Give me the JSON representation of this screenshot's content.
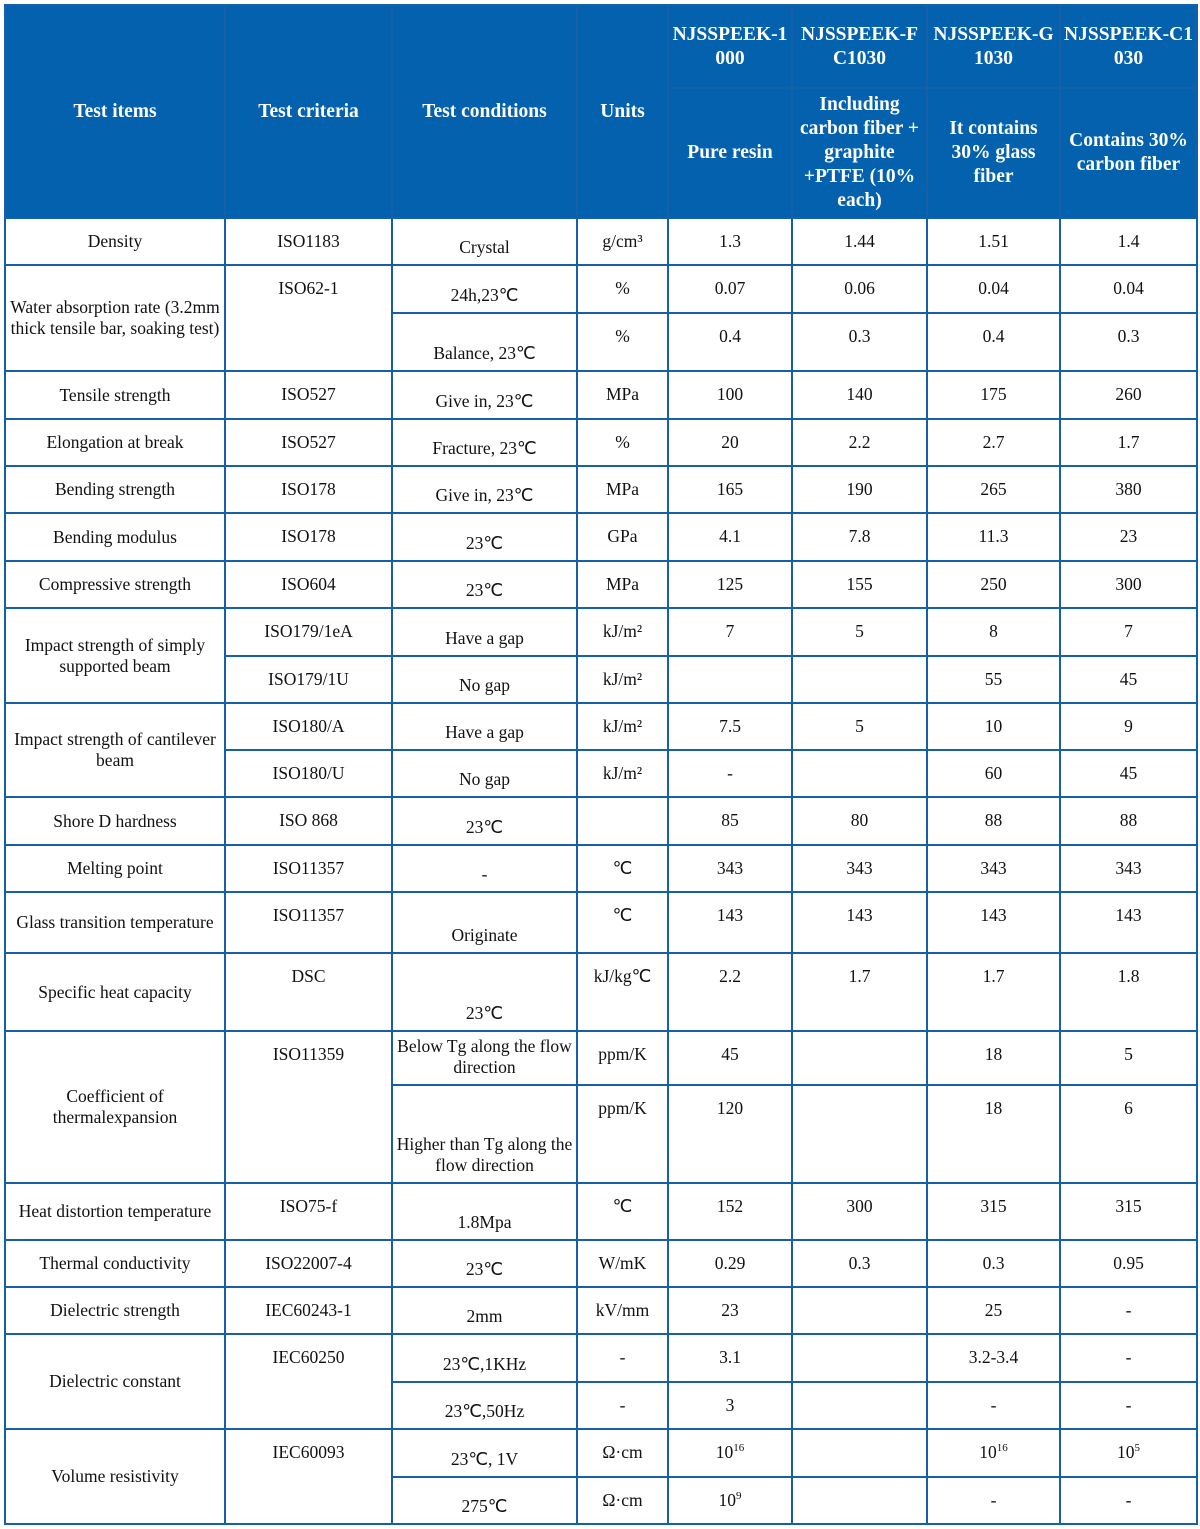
{
  "header": {
    "test_items": "Test items",
    "test_criteria": "Test criteria",
    "test_conditions": "Test conditions",
    "units": "Units",
    "grades": [
      {
        "name": "NJSSPEEK-1000",
        "desc": "Pure resin"
      },
      {
        "name": "NJSSPEEK-FC1030",
        "desc": "Including carbon fiber + graphite +PTFE (10% each)"
      },
      {
        "name": "NJSSPEEK-G1030",
        "desc": "It contains 30% glass fiber"
      },
      {
        "name": "NJSSPEEK-C1030",
        "desc": "Contains 30% carbon fiber"
      }
    ]
  },
  "rows": [
    {
      "h": 47,
      "item": {
        "t": "Density"
      },
      "crit": {
        "t": "ISO1183"
      },
      "cond": "Crystal",
      "unit": "g/cm³",
      "v": [
        "1.3",
        "1.44",
        "1.51",
        "1.4"
      ]
    },
    {
      "h": 48,
      "item": {
        "t": "Water absorption rate (3.2mm thick tensile bar, soaking test)",
        "rs": 2
      },
      "crit": {
        "t": "ISO62-1",
        "rs": 2
      },
      "cond": "24h,23℃",
      "unit": "%",
      "v": [
        "0.07",
        "0.06",
        "0.04",
        "0.04"
      ]
    },
    {
      "h": 58,
      "cond": "Balance, 23℃",
      "unit": "%",
      "v": [
        "0.4",
        "0.3",
        "0.4",
        "0.3"
      ]
    },
    {
      "h": 48,
      "item": {
        "t": "Tensile strength"
      },
      "crit": {
        "t": "ISO527"
      },
      "cond": "Give in, 23℃",
      "unit": "MPa",
      "v": [
        "100",
        "140",
        "175",
        "260"
      ]
    },
    {
      "h": 47,
      "item": {
        "t": "Elongation at break"
      },
      "crit": {
        "t": "ISO527"
      },
      "cond": "Fracture, 23℃",
      "unit": "%",
      "v": [
        "20",
        "2.2",
        "2.7",
        "1.7"
      ]
    },
    {
      "h": 47,
      "item": {
        "t": "Bending strength"
      },
      "crit": {
        "t": "ISO178"
      },
      "cond": "Give in, 23℃",
      "unit": "MPa",
      "v": [
        "165",
        "190",
        "265",
        "380"
      ]
    },
    {
      "h": 48,
      "item": {
        "t": "Bending modulus"
      },
      "crit": {
        "t": "ISO178"
      },
      "cond": "23℃",
      "unit": "GPa",
      "v": [
        "4.1",
        "7.8",
        "11.3",
        "23"
      ]
    },
    {
      "h": 47,
      "item": {
        "t": "Compressive strength"
      },
      "crit": {
        "t": "ISO604"
      },
      "cond": "23℃",
      "unit": "MPa",
      "v": [
        "125",
        "155",
        "250",
        "300"
      ]
    },
    {
      "h": 48,
      "item": {
        "t": "Impact strength of simply supported beam",
        "rs": 2
      },
      "crit": {
        "t": "ISO179/1eA"
      },
      "cond": "Have a gap",
      "unit": "kJ/m²",
      "v": [
        "7",
        "5",
        "8",
        "7"
      ]
    },
    {
      "h": 47,
      "crit": {
        "t": "ISO179/1U"
      },
      "cond": "No gap",
      "unit": "kJ/m²",
      "v": [
        "",
        "",
        "55",
        "45"
      ]
    },
    {
      "h": 47,
      "item": {
        "t": "Impact strength of cantilever beam",
        "rs": 2
      },
      "crit": {
        "t": "ISO180/A"
      },
      "cond": "Have a gap",
      "unit": "kJ/m²",
      "v": [
        "7.5",
        "5",
        "10",
        "9"
      ]
    },
    {
      "h": 47,
      "crit": {
        "t": "ISO180/U"
      },
      "cond": "No gap",
      "unit": "kJ/m²",
      "v": [
        "-",
        "",
        "60",
        "45"
      ]
    },
    {
      "h": 48,
      "item": {
        "t": "Shore D hardness"
      },
      "crit": {
        "t": "ISO 868"
      },
      "cond": "23℃",
      "unit": "",
      "v": [
        "85",
        "80",
        "88",
        "88"
      ]
    },
    {
      "h": 47,
      "item": {
        "t": "Melting point"
      },
      "crit": {
        "t": "ISO11357"
      },
      "cond": "-",
      "unit": "℃",
      "v": [
        "343",
        "343",
        "343",
        "343"
      ]
    },
    {
      "h": 61,
      "item": {
        "t": "Glass transition temperature"
      },
      "crit": {
        "t": "ISO11357"
      },
      "cond": "Originate",
      "unit": "℃",
      "v": [
        "143",
        "143",
        "143",
        "143"
      ]
    },
    {
      "h": 78,
      "item": {
        "t": "Specific heat capacity"
      },
      "crit": {
        "t": "DSC"
      },
      "cond": "23℃",
      "unit": "kJ/kg℃",
      "v": [
        "2.2",
        "1.7",
        "1.7",
        "1.8"
      ]
    },
    {
      "h": 54,
      "item": {
        "t": "Coefficient of thermalexpansion",
        "rs": 2
      },
      "crit": {
        "t": "ISO11359",
        "rs": 2
      },
      "cond": "Below Tg along the flow direction",
      "unit": "ppm/K",
      "v": [
        "45",
        "",
        "18",
        "5"
      ]
    },
    {
      "h": 98,
      "cond": "Higher than Tg along the flow direction",
      "unit": "ppm/K",
      "v": [
        "120",
        "",
        "18",
        "6"
      ]
    },
    {
      "h": 57,
      "item": {
        "t": "Heat distortion temperature"
      },
      "crit": {
        "t": "ISO75-f"
      },
      "cond": "1.8Mpa",
      "unit": "℃",
      "v": [
        "152",
        "300",
        "315",
        "315"
      ]
    },
    {
      "h": 47,
      "item": {
        "t": "Thermal conductivity"
      },
      "crit": {
        "t": "ISO22007-4"
      },
      "cond": "23℃",
      "unit": "W/mK",
      "v": [
        "0.29",
        "0.3",
        "0.3",
        "0.95"
      ]
    },
    {
      "h": 47,
      "item": {
        "t": "Dielectric strength"
      },
      "crit": {
        "t": "IEC60243-1"
      },
      "cond": "2mm",
      "unit": "kV/mm",
      "v": [
        "23",
        "",
        "25",
        "-"
      ]
    },
    {
      "h": 48,
      "item": {
        "t": "Dielectric constant",
        "rs": 2
      },
      "crit": {
        "t": "IEC60250",
        "rs": 2
      },
      "cond": "23℃,1KHz",
      "unit": "-",
      "v": [
        "3.1",
        "",
        "3.2-3.4",
        "-"
      ]
    },
    {
      "h": 47,
      "cond": "23℃,50Hz",
      "unit": "-",
      "v": [
        "3",
        "",
        "-",
        "-"
      ]
    },
    {
      "h": 48,
      "item": {
        "t": "Volume resistivity",
        "rs": 2
      },
      "crit": {
        "t": "IEC60093",
        "rs": 2
      },
      "cond": "23℃, 1V",
      "unit": "Ω·cm",
      "v": [
        {
          "b": "10",
          "sup": "16"
        },
        "",
        {
          "b": "10",
          "sup": "16"
        },
        {
          "b": "10",
          "sup": "5"
        }
      ]
    },
    {
      "h": 47,
      "cond": "275℃",
      "unit": "Ω·cm",
      "v": [
        {
          "b": "10",
          "sup": "9"
        },
        "",
        "-",
        "-"
      ]
    }
  ],
  "colors": {
    "header_bg": "#0461ae",
    "border": "#1560a8"
  }
}
